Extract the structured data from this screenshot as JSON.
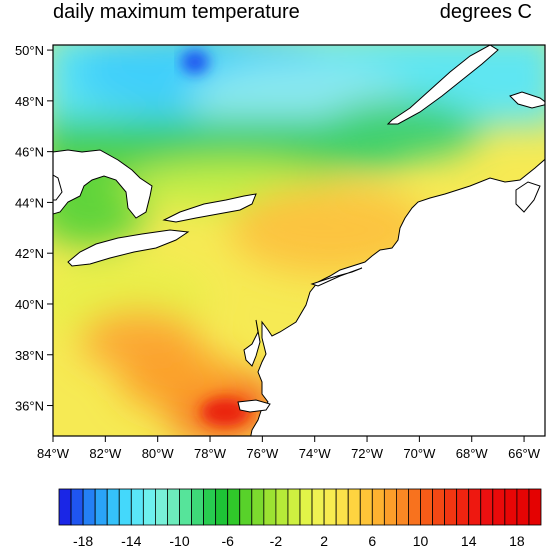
{
  "map": {
    "title_left": "daily maximum temperature",
    "title_right": "degrees C",
    "lat_labels": [
      "50°N",
      "48°N",
      "46°N",
      "44°N",
      "42°N",
      "40°N",
      "38°N",
      "36°N"
    ],
    "lon_labels": [
      "84°W",
      "82°W",
      "80°W",
      "78°W",
      "76°W",
      "74°W",
      "72°W",
      "70°W",
      "68°W",
      "66°W"
    ],
    "extent": {
      "lon_min": -84,
      "lon_max": -65.2,
      "lat_min": 34.8,
      "lat_max": 50.2
    }
  },
  "colorbar": {
    "labels": [
      "-18",
      "-14",
      "-10",
      "-6",
      "-2",
      "2",
      "6",
      "10",
      "14",
      "18"
    ],
    "min": -20,
    "max": 20,
    "step": 1,
    "colors": [
      "#1a26e6",
      "#1f55f0",
      "#2480f5",
      "#2aa4f8",
      "#35c2fa",
      "#44d8fb",
      "#5ae6f8",
      "#6ef0ee",
      "#78f0d8",
      "#6cecbc",
      "#56e49a",
      "#3ed878",
      "#28cc50",
      "#1ec436",
      "#30c82a",
      "#58d22a",
      "#7cda2e",
      "#9ce232",
      "#b6ea38",
      "#cef040",
      "#e2f448",
      "#f0f252",
      "#f8ec50",
      "#fce24a",
      "#fed440",
      "#fec438",
      "#feb230",
      "#fc9e2a",
      "#fa8824",
      "#f8721e",
      "#f65c18",
      "#f44814",
      "#f23612",
      "#f02410",
      "#ee1810",
      "#ec1010",
      "#ea0a0a",
      "#e80606",
      "#e60404",
      "#e40202"
    ]
  }
}
